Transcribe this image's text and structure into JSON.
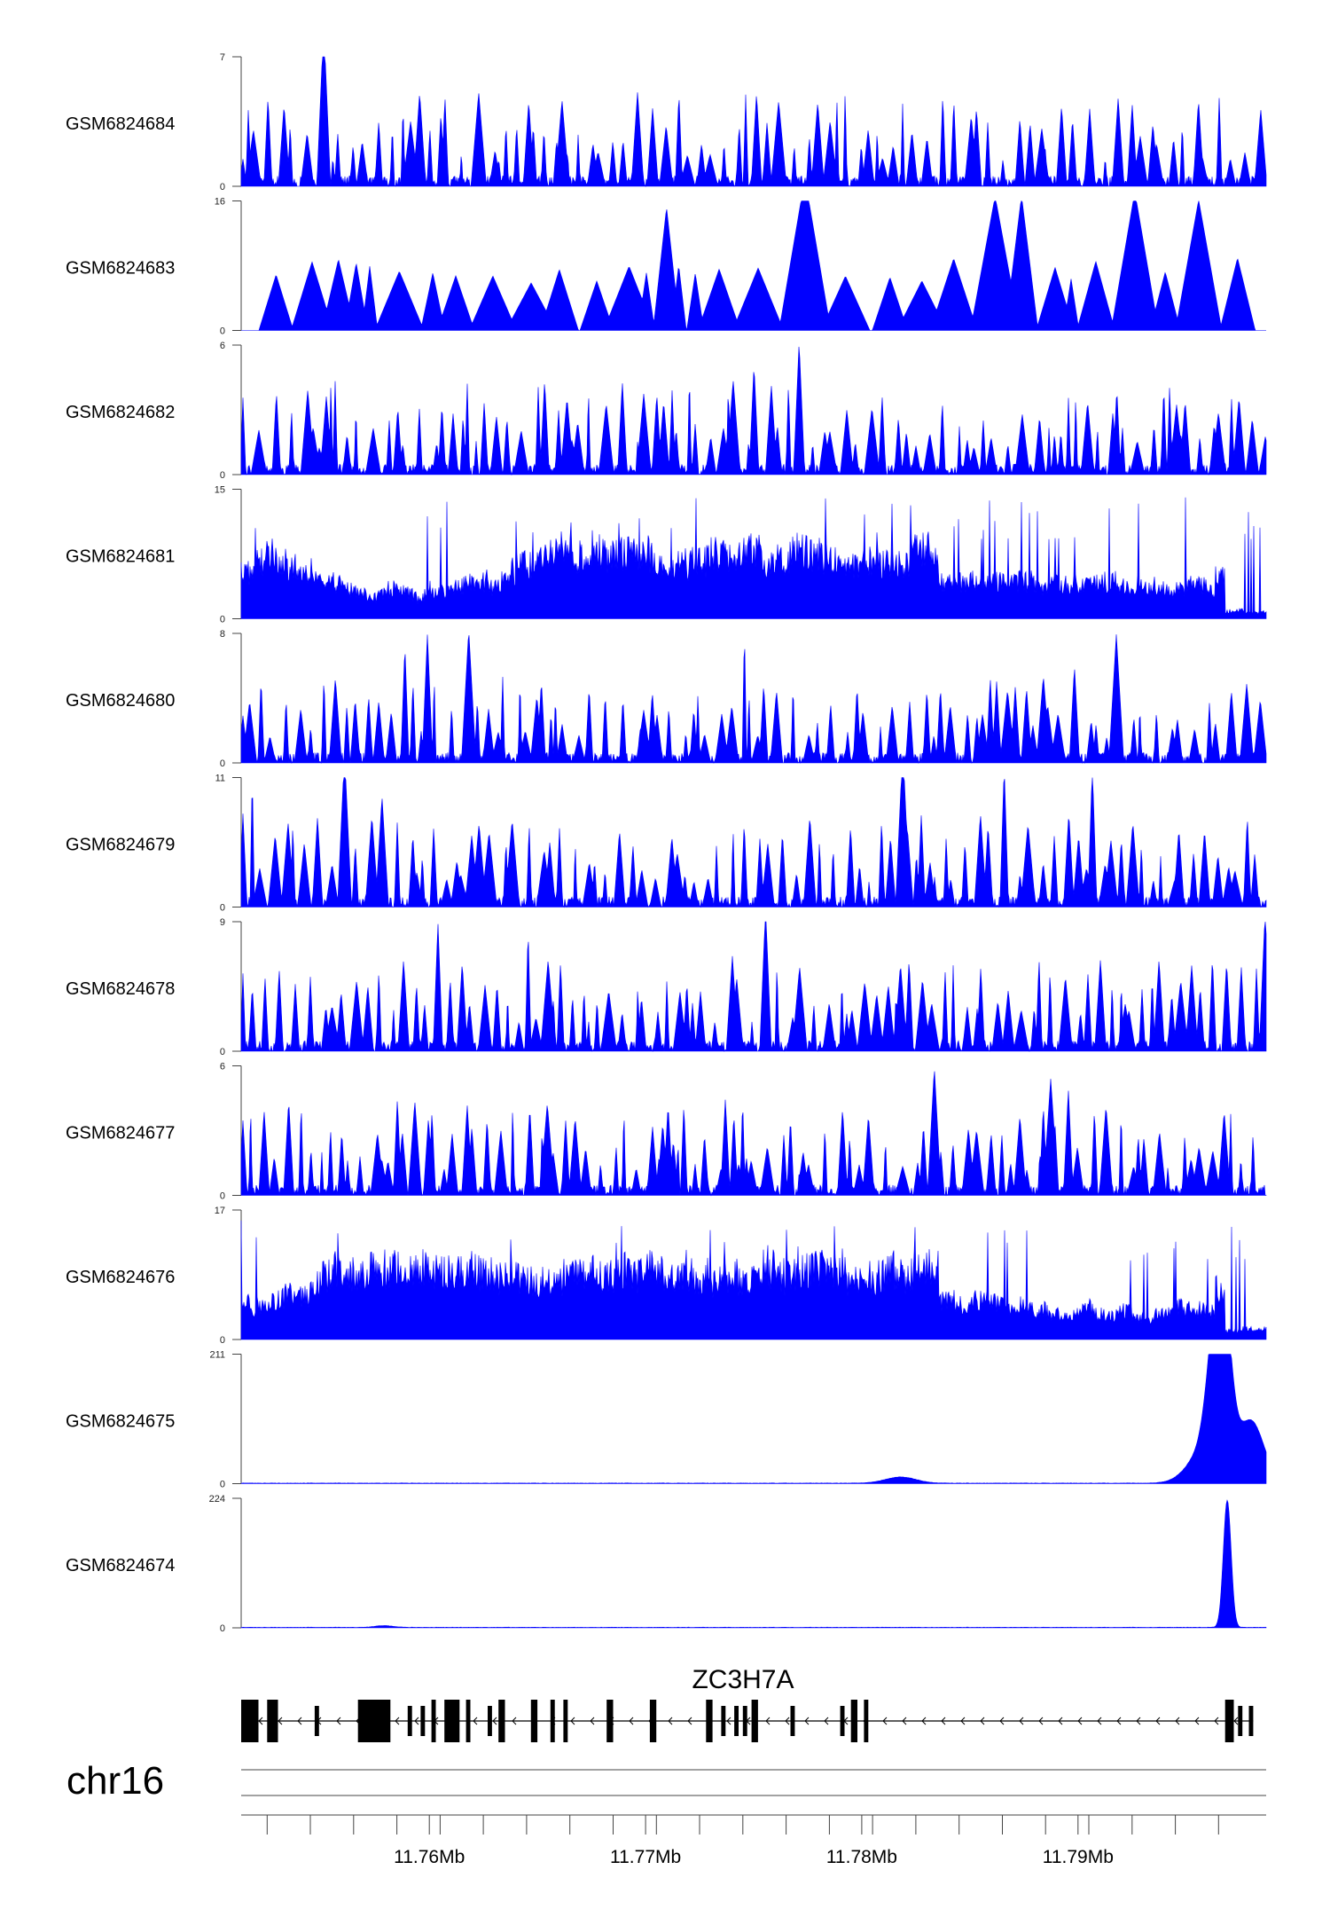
{
  "chart_data": {
    "type": "area",
    "chromosome": "chr16",
    "gene": {
      "name": "ZC3H7A",
      "strand": "-"
    },
    "x_tick_labels": [
      "11.76Mb",
      "11.77Mb",
      "11.78Mb",
      "11.79Mb"
    ],
    "x_ticks_mb": [
      11.76,
      11.77,
      11.78,
      11.79
    ],
    "xlim_mb": [
      11.7513,
      11.7987
    ],
    "series": [
      {
        "name": "GSM6824684",
        "ymax": 7,
        "ymax_label": "7",
        "ymin_label": "0",
        "pattern": "sparse",
        "seed": 11
      },
      {
        "name": "GSM6824683",
        "ymax": 16,
        "ymax_label": "16",
        "ymin_label": "0",
        "pattern": "triangles",
        "seed": 23
      },
      {
        "name": "GSM6824682",
        "ymax": 6,
        "ymax_label": "6",
        "ymin_label": "0",
        "pattern": "sparse",
        "seed": 37
      },
      {
        "name": "GSM6824681",
        "ymax": 15,
        "ymax_label": "15",
        "ymin_label": "0",
        "pattern": "dense",
        "seed": 41
      },
      {
        "name": "GSM6824680",
        "ymax": 8,
        "ymax_label": "8",
        "ymin_label": "0",
        "pattern": "sparse",
        "seed": 53
      },
      {
        "name": "GSM6824679",
        "ymax": 11,
        "ymax_label": "11",
        "ymin_label": "0",
        "pattern": "sparse",
        "seed": 67
      },
      {
        "name": "GSM6824678",
        "ymax": 9,
        "ymax_label": "9",
        "ymin_label": "0",
        "pattern": "sparse",
        "seed": 71
      },
      {
        "name": "GSM6824677",
        "ymax": 6,
        "ymax_label": "6",
        "ymin_label": "0",
        "pattern": "sparse",
        "seed": 83
      },
      {
        "name": "GSM6824676",
        "ymax": 17,
        "ymax_label": "17",
        "ymin_label": "0",
        "pattern": "dense",
        "seed": 97
      },
      {
        "name": "GSM6824675",
        "ymax": 211,
        "ymax_label": "211",
        "ymin_label": "0",
        "pattern": "peak",
        "peaks": [
          {
            "mb": 11.7818,
            "height": 10,
            "width_mb": 0.0007
          },
          {
            "mb": 11.796,
            "height": 60,
            "width_mb": 0.0008
          },
          {
            "mb": 11.7964,
            "height": 205,
            "width_mb": 0.0004
          },
          {
            "mb": 11.7968,
            "height": 150,
            "width_mb": 0.00035
          },
          {
            "mb": 11.798,
            "height": 100,
            "width_mb": 0.0006
          }
        ]
      },
      {
        "name": "GSM6824674",
        "ymax": 224,
        "ymax_label": "224",
        "ymin_label": "0",
        "pattern": "peak",
        "peaks": [
          {
            "mb": 11.7969,
            "height": 220,
            "width_mb": 0.00018
          },
          {
            "mb": 11.7579,
            "height": 3,
            "width_mb": 0.0004
          }
        ]
      }
    ],
    "exons_mb": [
      [
        11.7513,
        11.7521
      ],
      [
        11.7525,
        11.753
      ],
      [
        11.7547,
        11.7549
      ],
      [
        11.7567,
        11.7582
      ],
      [
        11.759,
        11.7592
      ],
      [
        11.7596,
        11.7598
      ],
      [
        11.7601,
        11.7603
      ],
      [
        11.7607,
        11.7614
      ],
      [
        11.7617,
        11.7619
      ],
      [
        11.7627,
        11.7629
      ],
      [
        11.7632,
        11.7635
      ],
      [
        11.7647,
        11.765
      ],
      [
        11.7656,
        11.7658
      ],
      [
        11.7662,
        11.7664
      ],
      [
        11.7682,
        11.7685
      ],
      [
        11.7702,
        11.7705
      ],
      [
        11.7728,
        11.7731
      ],
      [
        11.7735,
        11.7737
      ],
      [
        11.7741,
        11.7743
      ],
      [
        11.7745,
        11.7747
      ],
      [
        11.7749,
        11.7752
      ],
      [
        11.7767,
        11.7769
      ],
      [
        11.779,
        11.7792
      ],
      [
        11.7795,
        11.7798
      ],
      [
        11.7801,
        11.7803
      ],
      [
        11.7968,
        11.7972
      ],
      [
        11.7974,
        11.7976
      ],
      [
        11.7979,
        11.7981
      ]
    ]
  }
}
